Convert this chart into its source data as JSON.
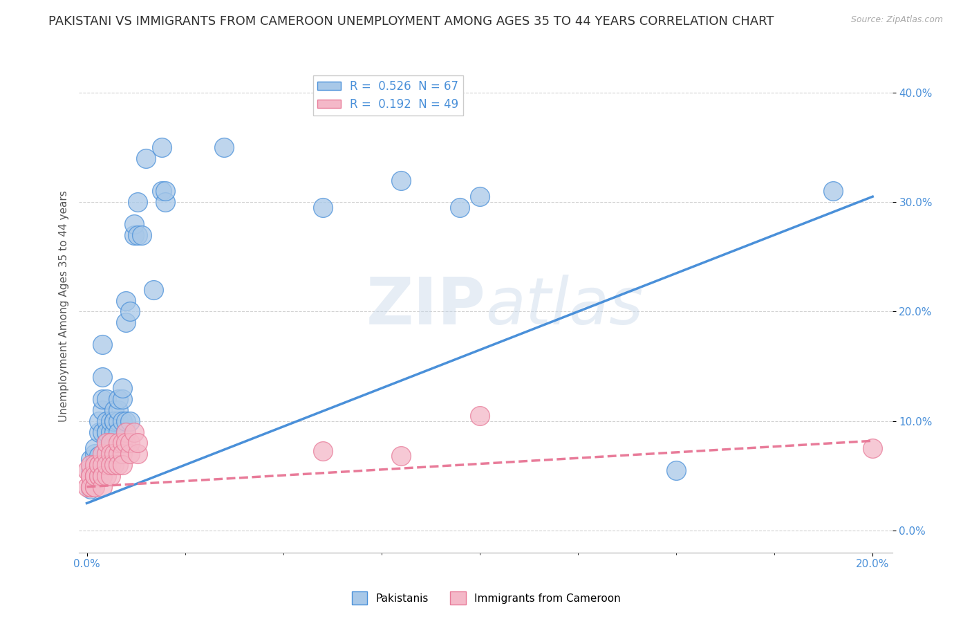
{
  "title": "PAKISTANI VS IMMIGRANTS FROM CAMEROON UNEMPLOYMENT AMONG AGES 35 TO 44 YEARS CORRELATION CHART",
  "source": "Source: ZipAtlas.com",
  "ylabel": "Unemployment Among Ages 35 to 44 years",
  "xlim": [
    -0.002,
    0.205
  ],
  "ylim": [
    -0.02,
    0.43
  ],
  "xticks": [
    0.0,
    0.2
  ],
  "yticks": [
    0.0,
    0.1,
    0.2,
    0.3,
    0.4
  ],
  "xtick_labels": [
    "0.0%",
    "20.0%"
  ],
  "ytick_labels": [
    "0.0%",
    "10.0%",
    "20.0%",
    "30.0%",
    "40.0%"
  ],
  "blue_R": 0.526,
  "blue_N": 67,
  "pink_R": 0.192,
  "pink_N": 49,
  "blue_color": "#A8C8E8",
  "pink_color": "#F4B8C8",
  "blue_line_color": "#4A90D9",
  "pink_line_color": "#E87B99",
  "watermark_zip": "ZIP",
  "watermark_atlas": "atlas",
  "legend_label_blue": "Pakistanis",
  "legend_label_pink": "Immigrants from Cameroon",
  "blue_scatter_x": [
    0.001,
    0.001,
    0.001,
    0.001,
    0.002,
    0.002,
    0.002,
    0.002,
    0.002,
    0.003,
    0.003,
    0.003,
    0.003,
    0.003,
    0.003,
    0.004,
    0.004,
    0.004,
    0.004,
    0.004,
    0.004,
    0.005,
    0.005,
    0.005,
    0.005,
    0.005,
    0.005,
    0.006,
    0.006,
    0.006,
    0.006,
    0.007,
    0.007,
    0.007,
    0.007,
    0.007,
    0.008,
    0.008,
    0.008,
    0.008,
    0.009,
    0.009,
    0.009,
    0.01,
    0.01,
    0.01,
    0.01,
    0.011,
    0.011,
    0.012,
    0.012,
    0.013,
    0.013,
    0.014,
    0.015,
    0.017,
    0.019,
    0.019,
    0.02,
    0.02,
    0.035,
    0.06,
    0.08,
    0.095,
    0.1,
    0.15,
    0.19
  ],
  "blue_scatter_y": [
    0.04,
    0.055,
    0.065,
    0.038,
    0.062,
    0.07,
    0.058,
    0.075,
    0.055,
    0.09,
    0.1,
    0.068,
    0.05,
    0.055,
    0.06,
    0.11,
    0.14,
    0.17,
    0.06,
    0.09,
    0.12,
    0.08,
    0.09,
    0.1,
    0.12,
    0.07,
    0.09,
    0.09,
    0.1,
    0.08,
    0.07,
    0.1,
    0.11,
    0.08,
    0.09,
    0.1,
    0.1,
    0.11,
    0.12,
    0.09,
    0.1,
    0.12,
    0.13,
    0.19,
    0.21,
    0.09,
    0.1,
    0.1,
    0.2,
    0.27,
    0.28,
    0.3,
    0.27,
    0.27,
    0.34,
    0.22,
    0.31,
    0.35,
    0.3,
    0.31,
    0.35,
    0.295,
    0.32,
    0.295,
    0.305,
    0.055,
    0.31
  ],
  "pink_scatter_x": [
    0.0,
    0.0,
    0.001,
    0.001,
    0.001,
    0.001,
    0.001,
    0.002,
    0.002,
    0.002,
    0.002,
    0.002,
    0.002,
    0.003,
    0.003,
    0.003,
    0.003,
    0.004,
    0.004,
    0.004,
    0.004,
    0.004,
    0.005,
    0.005,
    0.005,
    0.005,
    0.006,
    0.006,
    0.006,
    0.006,
    0.007,
    0.007,
    0.008,
    0.008,
    0.008,
    0.009,
    0.009,
    0.009,
    0.01,
    0.01,
    0.011,
    0.011,
    0.012,
    0.013,
    0.013,
    0.06,
    0.08,
    0.1,
    0.2
  ],
  "pink_scatter_y": [
    0.04,
    0.055,
    0.04,
    0.05,
    0.06,
    0.05,
    0.04,
    0.05,
    0.04,
    0.05,
    0.04,
    0.06,
    0.05,
    0.05,
    0.06,
    0.05,
    0.06,
    0.05,
    0.07,
    0.04,
    0.06,
    0.05,
    0.07,
    0.05,
    0.08,
    0.06,
    0.05,
    0.08,
    0.07,
    0.06,
    0.07,
    0.06,
    0.07,
    0.06,
    0.08,
    0.08,
    0.07,
    0.06,
    0.09,
    0.08,
    0.07,
    0.08,
    0.09,
    0.07,
    0.08,
    0.073,
    0.068,
    0.105,
    0.075
  ],
  "blue_line_x": [
    0.0,
    0.2
  ],
  "blue_line_y": [
    0.025,
    0.305
  ],
  "pink_line_x": [
    0.0,
    0.2
  ],
  "pink_line_y": [
    0.04,
    0.082
  ],
  "bg_color": "#FFFFFF",
  "grid_color": "#CCCCCC",
  "title_color": "#333333",
  "tick_color": "#4A90D9",
  "title_fontsize": 13,
  "axis_label_fontsize": 11,
  "tick_fontsize": 11
}
